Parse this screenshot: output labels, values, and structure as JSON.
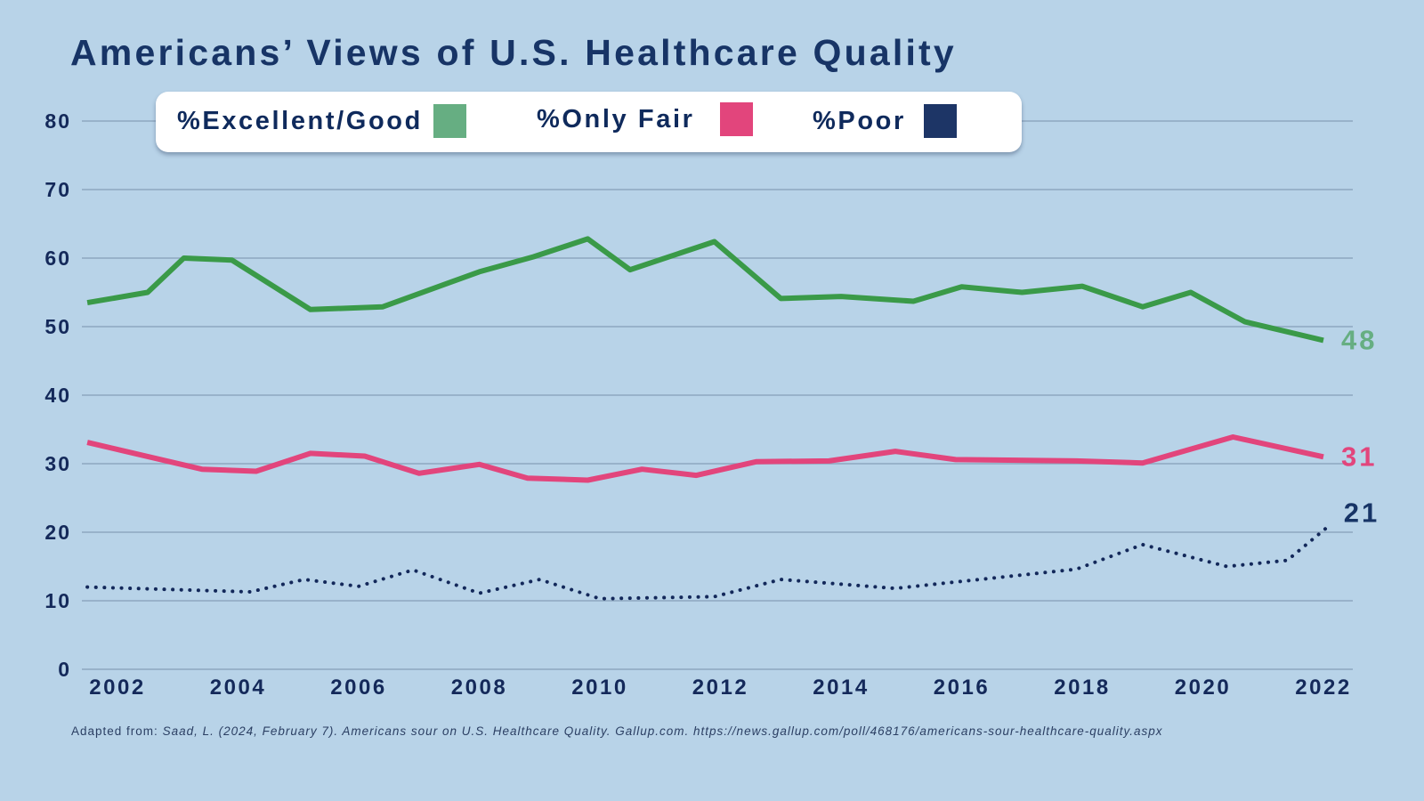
{
  "chart_data": {
    "type": "line",
    "title": "Americans’ Views of U.S. Healthcare Quality",
    "xlabel": "",
    "ylabel": "",
    "ylim": [
      0,
      80
    ],
    "xlim": [
      2001.5,
      2023
    ],
    "grid": true,
    "legend_placement": "top-left",
    "y_ticks": [
      "0",
      "10",
      "20",
      "30",
      "40",
      "50",
      "60",
      "70",
      "80"
    ],
    "x_ticks": [
      "2002",
      "2004",
      "2006",
      "2008",
      "2010",
      "2012",
      "2014",
      "2016",
      "2018",
      "2020",
      "2022"
    ],
    "series": [
      {
        "name": "%Excellent/Good",
        "color": "#3a9a48",
        "legend_color": "#66ae82",
        "label_color": "#66ae82",
        "style": "solid",
        "end_label": "48",
        "x": [
          2001.5,
          2002.5,
          2003.1,
          2003.9,
          2005.2,
          2006.4,
          2008.0,
          2008.9,
          2009.8,
          2010.5,
          2011.9,
          2013.0,
          2014.0,
          2015.2,
          2016.0,
          2017.0,
          2018.0,
          2019.0,
          2019.8,
          2020.7,
          2022.0
        ],
        "values": [
          53.5,
          55,
          60,
          59.7,
          52.5,
          52.9,
          58,
          60.2,
          62.8,
          58.3,
          62.4,
          54.1,
          54.4,
          53.7,
          55.8,
          55,
          55.9,
          52.9,
          55,
          50.7,
          48
        ]
      },
      {
        "name": "%Only Fair",
        "color": "#e2457c",
        "legend_color": "#e2457c",
        "label_color": "#e2457c",
        "style": "solid",
        "end_label": "31",
        "x": [
          2001.5,
          2003.4,
          2004.3,
          2005.2,
          2006.1,
          2007.0,
          2008.0,
          2008.8,
          2009.8,
          2010.7,
          2011.6,
          2012.6,
          2013.8,
          2014.9,
          2015.9,
          2017.9,
          2019.0,
          2020.5,
          2022.0
        ],
        "values": [
          33.1,
          29.2,
          28.9,
          31.5,
          31.1,
          28.6,
          29.9,
          27.9,
          27.6,
          29.2,
          28.3,
          30.3,
          30.4,
          31.8,
          30.6,
          30.4,
          30.1,
          33.9,
          31
        ]
      },
      {
        "name": "%Poor",
        "color": "#13285a",
        "legend_color": "#1d3566",
        "label_color": "#173466",
        "style": "dotted",
        "end_label": "21",
        "x": [
          2001.5,
          2004.2,
          2005.1,
          2006.0,
          2006.9,
          2008.0,
          2009.0,
          2010.0,
          2011.9,
          2013.0,
          2014.9,
          2017.9,
          2019.0,
          2020.4,
          2021.4,
          2022.1
        ],
        "values": [
          12,
          11.3,
          13.1,
          12.1,
          14.5,
          11.1,
          13.1,
          10.3,
          10.6,
          13.1,
          11.8,
          14.6,
          18.2,
          15,
          15.9,
          21
        ]
      }
    ]
  },
  "legend": {
    "items": [
      {
        "label": "%Excellent/Good",
        "color": "#66ae82"
      },
      {
        "label": "%Only Fair",
        "color": "#e2457c"
      },
      {
        "label": "%Poor",
        "color": "#1d3566"
      }
    ]
  },
  "citation": {
    "prefix": "Adapted from: ",
    "body": "Saad, L. (2024, February 7). Americans sour on U.S. Healthcare Quality. Gallup.com. https://news.gallup.com/poll/468176/americans-sour-healthcare-quality.aspx"
  }
}
